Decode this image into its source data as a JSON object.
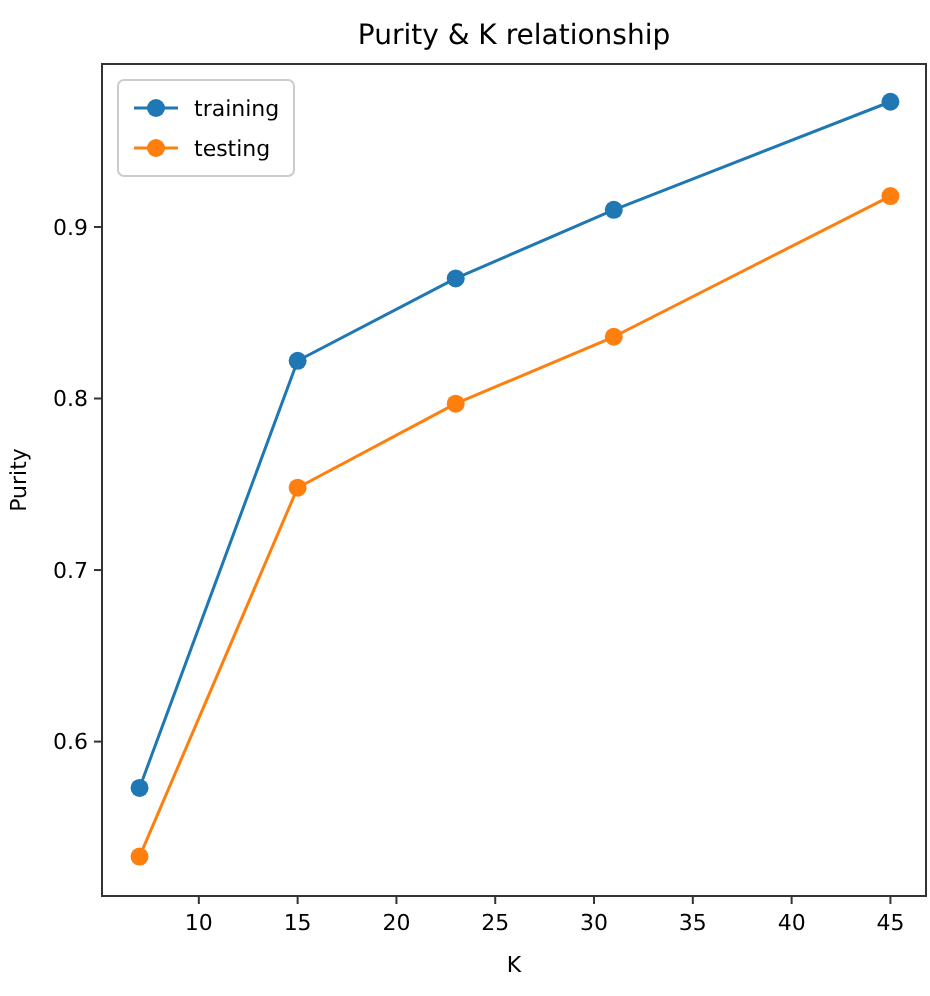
{
  "chart_data": {
    "type": "line",
    "title": "Purity & K relationship",
    "xlabel": "K",
    "ylabel": "Purity",
    "x": [
      7,
      15,
      23,
      31,
      45
    ],
    "series": [
      {
        "name": "training",
        "color": "#1f77b4",
        "values": [
          0.573,
          0.822,
          0.87,
          0.91,
          0.973
        ]
      },
      {
        "name": "testing",
        "color": "#ff7f0e",
        "values": [
          0.533,
          0.748,
          0.797,
          0.836,
          0.918
        ]
      }
    ],
    "xlim": [
      5.1,
      46.8
    ],
    "xticks": [
      10,
      15,
      20,
      25,
      30,
      35,
      40,
      45
    ],
    "ylim": [
      0.51,
      0.995
    ],
    "yticks": [
      0.6,
      0.7,
      0.8,
      0.9
    ],
    "grid": false,
    "legend": "top left",
    "marker": "circle",
    "line_style": "solid"
  }
}
